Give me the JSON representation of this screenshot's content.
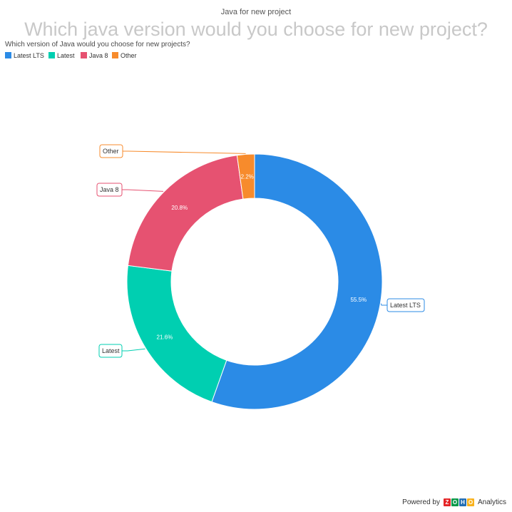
{
  "chart_data": {
    "type": "pie",
    "title": "Java for new project",
    "subtitle": "Which java version would you choose for new project?",
    "question": "Which version of Java would you choose for new projects?",
    "categories": [
      "Latest LTS",
      "Latest",
      "Java 8",
      "Other"
    ],
    "values": [
      55.5,
      21.6,
      20.8,
      2.2
    ],
    "value_labels": [
      "55.5%",
      "21.6%",
      "20.8%",
      "2.2%"
    ],
    "colors": [
      "#2b8be6",
      "#00cfb1",
      "#e65271",
      "#f78b2c"
    ],
    "legend": {
      "placement": "top-left",
      "items": [
        {
          "label": "Latest LTS",
          "color": "#2b8be6"
        },
        {
          "label": "Latest",
          "color": "#00cfb1"
        },
        {
          "label": "Java 8",
          "color": "#e65271"
        },
        {
          "label": "Other",
          "color": "#f78b2c"
        }
      ]
    },
    "donut": true
  },
  "footer": {
    "powered_by": "Powered by",
    "brand": [
      "Z",
      "O",
      "H",
      "O"
    ],
    "product": "Analytics"
  }
}
